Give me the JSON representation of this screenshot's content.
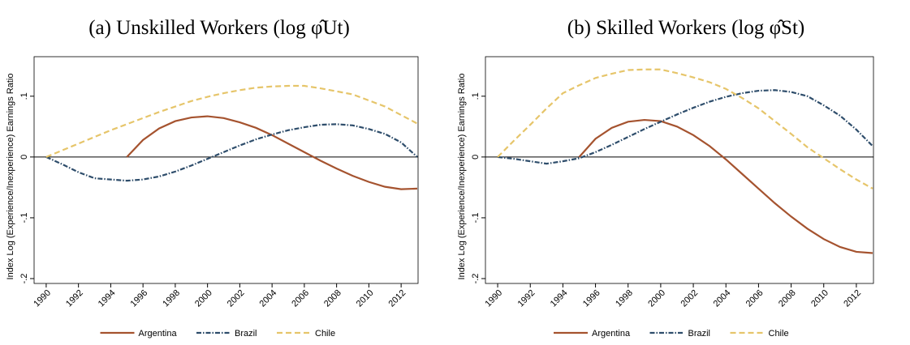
{
  "chart_data": [
    {
      "type": "line",
      "title": "(a) Unskilled Workers (log φ̂Ut)",
      "y_label": "Index Log (Experience/Inexperience) Earnings Ratio",
      "x": [
        1990,
        1991,
        1992,
        1993,
        1994,
        1995,
        1996,
        1997,
        1998,
        1999,
        2000,
        2001,
        2002,
        2003,
        2004,
        2005,
        2006,
        2007,
        2008,
        2009,
        2010,
        2011,
        2012,
        2013
      ],
      "xlim": [
        1989.25,
        2013.05
      ],
      "xticks": [
        1990,
        1992,
        1994,
        1996,
        1998,
        2000,
        2002,
        2004,
        2006,
        2008,
        2010,
        2012
      ],
      "ylim": [
        -0.208,
        0.165
      ],
      "yticks": [
        {
          "value": -0.2,
          "label": "-.2"
        },
        {
          "value": -0.1,
          "label": "-.1"
        },
        0,
        {
          "value": 0.1,
          "label": ".1"
        }
      ],
      "zero_line": true,
      "legend": "bottom",
      "series": [
        {
          "name": "Argentina",
          "color": "#a5532f",
          "dash": "solid",
          "values": [
            null,
            null,
            null,
            null,
            null,
            0,
            0.028,
            0.047,
            0.059,
            0.065,
            0.067,
            0.064,
            0.057,
            0.048,
            0.036,
            0.022,
            0.008,
            -0.006,
            -0.019,
            -0.031,
            -0.041,
            -0.049,
            -0.053,
            -0.052
          ]
        },
        {
          "name": "Brazil",
          "color": "#2e4d6b",
          "dash": "dashdot",
          "values": [
            0,
            -0.012,
            -0.025,
            -0.035,
            -0.037,
            -0.039,
            -0.037,
            -0.032,
            -0.024,
            -0.014,
            -0.003,
            0.008,
            0.019,
            0.029,
            0.037,
            0.044,
            0.049,
            0.053,
            0.054,
            0.052,
            0.046,
            0.038,
            0.024,
            0
          ]
        },
        {
          "name": "Chile",
          "color": "#e6c56a",
          "dash": "dashed",
          "values": [
            0,
            0.011,
            0.022,
            0.033,
            0.044,
            0.054,
            0.064,
            0.074,
            0.083,
            0.092,
            0.099,
            0.105,
            0.11,
            0.114,
            0.116,
            0.117,
            0.117,
            0.113,
            0.108,
            0.103,
            0.093,
            0.083,
            0.069,
            0.055
          ]
        }
      ]
    },
    {
      "type": "line",
      "title": "(b) Skilled Workers (log φ̂St)",
      "y_label": "Index Log (Experience/Inexperience) Earnings Ratio",
      "x": [
        1990,
        1991,
        1992,
        1993,
        1994,
        1995,
        1996,
        1997,
        1998,
        1999,
        2000,
        2001,
        2002,
        2003,
        2004,
        2005,
        2006,
        2007,
        2008,
        2009,
        2010,
        2011,
        2012,
        2013
      ],
      "xlim": [
        1989.25,
        2013.05
      ],
      "xticks": [
        1990,
        1992,
        1994,
        1996,
        1998,
        2000,
        2002,
        2004,
        2006,
        2008,
        2010,
        2012
      ],
      "ylim": [
        -0.208,
        0.165
      ],
      "yticks": [
        {
          "value": -0.2,
          "label": "-.2"
        },
        {
          "value": -0.1,
          "label": "-.1"
        },
        0,
        {
          "value": 0.1,
          "label": ".1"
        }
      ],
      "zero_line": true,
      "legend": "bottom",
      "series": [
        {
          "name": "Argentina",
          "color": "#a5532f",
          "dash": "solid",
          "values": [
            null,
            null,
            null,
            null,
            null,
            0,
            0.03,
            0.048,
            0.058,
            0.061,
            0.059,
            0.05,
            0.036,
            0.018,
            -0.004,
            -0.028,
            -0.052,
            -0.076,
            -0.098,
            -0.118,
            -0.135,
            -0.148,
            -0.156,
            -0.158
          ]
        },
        {
          "name": "Brazil",
          "color": "#2e4d6b",
          "dash": "dashdot",
          "values": [
            0,
            -0.003,
            -0.007,
            -0.011,
            -0.007,
            -0.002,
            0.008,
            0.02,
            0.033,
            0.046,
            0.058,
            0.07,
            0.081,
            0.091,
            0.099,
            0.105,
            0.109,
            0.11,
            0.107,
            0.1,
            0.085,
            0.068,
            0.045,
            0.018
          ]
        },
        {
          "name": "Chile",
          "color": "#e6c56a",
          "dash": "dashed",
          "values": [
            0,
            0.027,
            0.053,
            0.08,
            0.105,
            0.118,
            0.13,
            0.137,
            0.143,
            0.144,
            0.144,
            0.138,
            0.131,
            0.123,
            0.112,
            0.097,
            0.08,
            0.059,
            0.038,
            0.016,
            -0.002,
            -0.02,
            -0.037,
            -0.052
          ]
        }
      ]
    }
  ]
}
